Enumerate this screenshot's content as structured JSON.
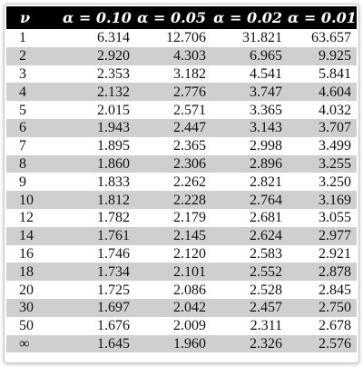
{
  "table": {
    "headers": [
      "ν",
      "α = 0.10",
      "α = 0.05",
      "α = 0.02",
      "α = 0.01"
    ],
    "rows": [
      [
        "1",
        "6.314",
        "12.706",
        "31.821",
        "63.657"
      ],
      [
        "2",
        "2.920",
        "4.303",
        "6.965",
        "9.925"
      ],
      [
        "3",
        "2.353",
        "3.182",
        "4.541",
        "5.841"
      ],
      [
        "4",
        "2.132",
        "2.776",
        "3.747",
        "4.604"
      ],
      [
        "5",
        "2.015",
        "2.571",
        "3.365",
        "4.032"
      ],
      [
        "6",
        "1.943",
        "2.447",
        "3.143",
        "3.707"
      ],
      [
        "7",
        "1.895",
        "2.365",
        "2.998",
        "3.499"
      ],
      [
        "8",
        "1.860",
        "2.306",
        "2.896",
        "3.255"
      ],
      [
        "9",
        "1.833",
        "2.262",
        "2.821",
        "3.250"
      ],
      [
        "10",
        "1.812",
        "2.228",
        "2.764",
        "3.169"
      ],
      [
        "12",
        "1.782",
        "2.179",
        "2.681",
        "3.055"
      ],
      [
        "14",
        "1.761",
        "2.145",
        "2.624",
        "2.977"
      ],
      [
        "16",
        "1.746",
        "2.120",
        "2.583",
        "2.921"
      ],
      [
        "18",
        "1.734",
        "2.101",
        "2.552",
        "2.878"
      ],
      [
        "20",
        "1.725",
        "2.086",
        "2.528",
        "2.845"
      ],
      [
        "30",
        "1.697",
        "2.042",
        "2.457",
        "2.750"
      ],
      [
        "50",
        "1.676",
        "2.009",
        "2.311",
        "2.678"
      ],
      [
        "∞",
        "1.645",
        "1.960",
        "2.326",
        "2.576"
      ]
    ]
  },
  "colors": {
    "header_background": "#000000",
    "header_text": "#ffffff",
    "stripe": "#cfcfcf"
  }
}
